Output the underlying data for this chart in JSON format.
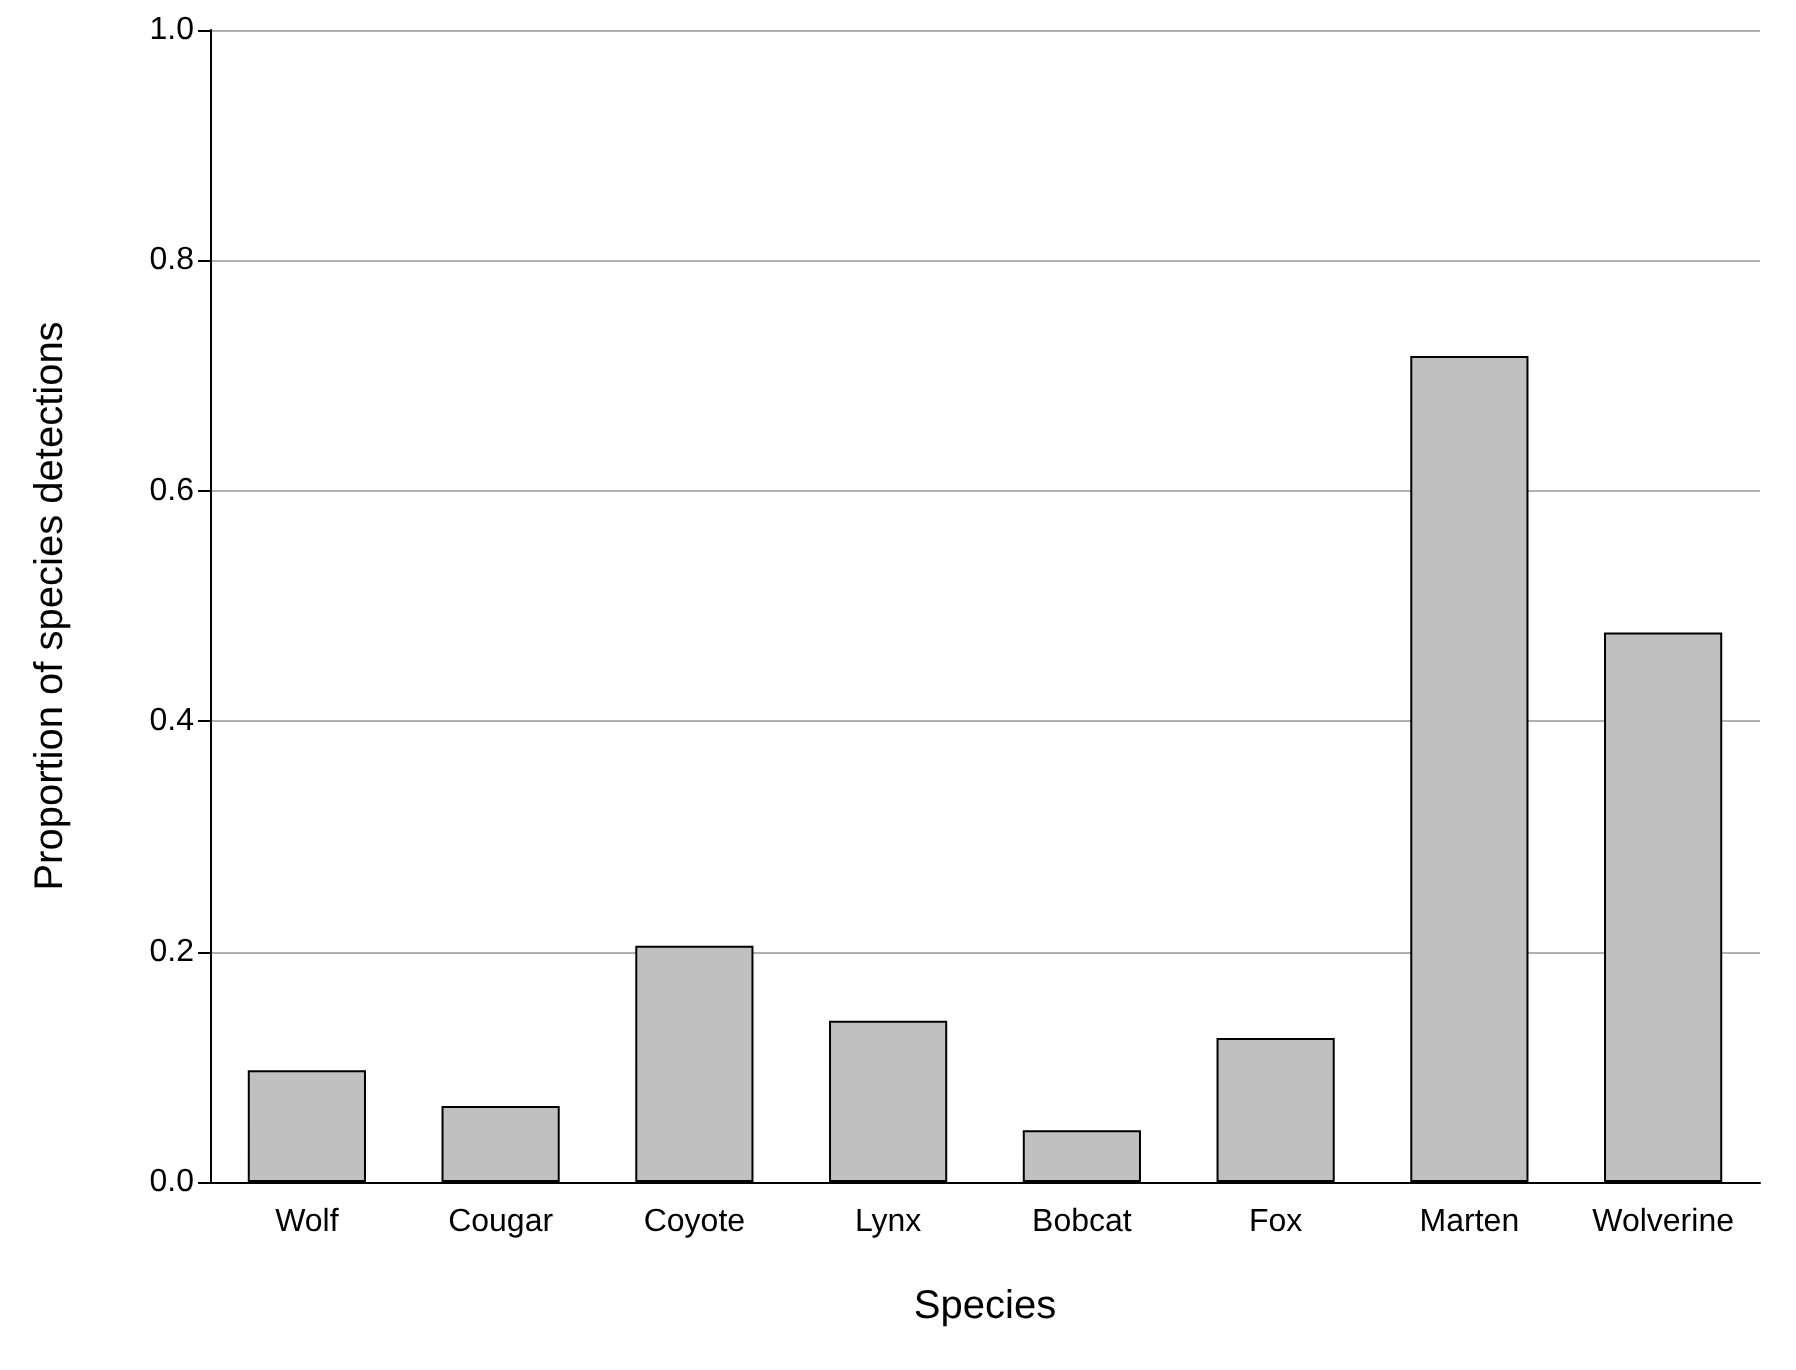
{
  "chart_data": {
    "type": "bar",
    "xlabel": "Species",
    "ylabel": "Proportion of species detections",
    "categories": [
      "Wolf",
      "Cougar",
      "Coyote",
      "Lynx",
      "Bobcat",
      "Fox",
      "Marten",
      "Wolverine"
    ],
    "values": [
      0.097,
      0.066,
      0.205,
      0.14,
      0.045,
      0.125,
      0.717,
      0.477
    ],
    "color": "#c0c0c0",
    "ylim": [
      0,
      1
    ],
    "yticks": [
      {
        "value": 0,
        "label": "0.0"
      },
      {
        "value": 0.2,
        "label": "0.2"
      },
      {
        "value": 0.4,
        "label": "0.4"
      },
      {
        "value": 0.6,
        "label": "0.6"
      },
      {
        "value": 0.8,
        "label": "0.8"
      },
      {
        "value": 1,
        "label": "1.0"
      }
    ],
    "grid": "y"
  }
}
